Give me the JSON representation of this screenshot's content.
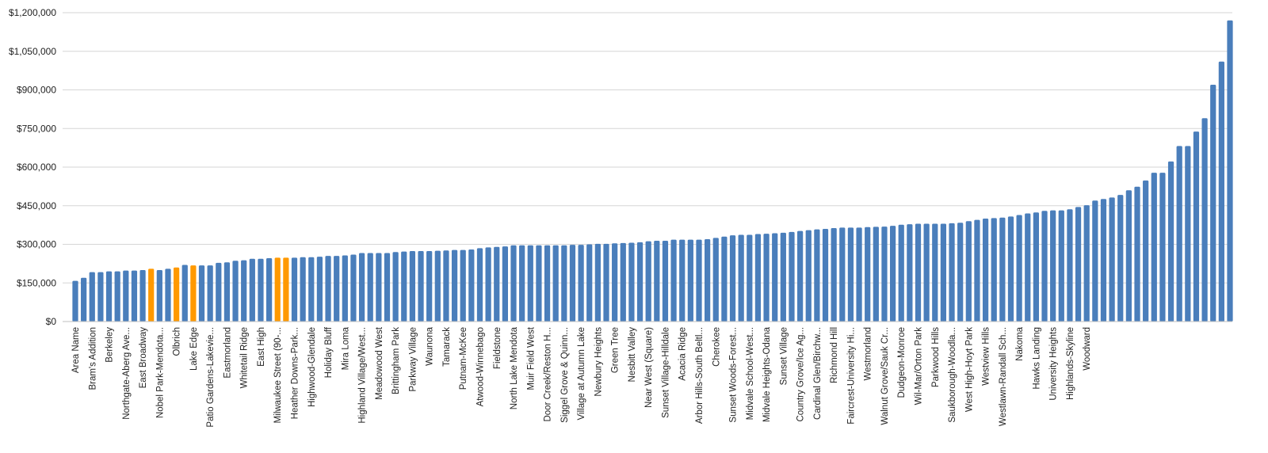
{
  "chart_data": {
    "type": "bar",
    "title": "",
    "xlabel": "",
    "ylabel": "",
    "ylim": [
      0,
      1200000
    ],
    "y_ticks": [
      "$0",
      "$150,000",
      "$300,000",
      "$450,000",
      "$600,000",
      "$750,000",
      "$900,000",
      "$1,050,000",
      "$1,200,000"
    ],
    "grid": true,
    "colors": {
      "default": "#4a7ebb",
      "highlight": "#ff9900"
    },
    "x_tick_labels": [
      "Area Name",
      "Bram's Addition",
      "Berkeley",
      "Northgate-Aberg Ave...",
      "East Broadway",
      "Nobel Park-Mendota...",
      "Olbrich",
      "Lake Edge",
      "Patio Gardens-Lakevie...",
      "Eastmorland",
      "Whitetail Ridge",
      "East High",
      "Milwaukee Street (90-...",
      "Heather Downs-Park...",
      "Highwood-Glendale",
      "Holiday Bluff",
      "Mira Loma",
      "Highland Village/West...",
      "Meadowood West",
      "Brittingham Park",
      "Parkway Village",
      "Waunona",
      "Tamarack",
      "Putnam-McKee",
      "Atwood-Winnebago",
      "Fieldstone",
      "North Lake Mendota",
      "Muir Field West",
      "Door Creek/Reston H...",
      "Siggel Grove & Quinn...",
      "Village at Autumn Lake",
      "Newbury Heights",
      "Green Tree",
      "Nesbitt Valley",
      "Near West (Square)",
      "Sunset Village-Hilldale",
      "Acacia Ridge",
      "Arbor Hills-South Beltl...",
      "Cherokee",
      "Sunset Woods-Forest...",
      "Midvale School-West...",
      "Midvale Heights-Odana",
      "Sunset Village",
      "Country Grove/Ice Ag...",
      "Cardinal Glen/Birchw...",
      "Richmond Hill",
      "Faircrest-University Hi...",
      "Westmorland",
      "Walnut Grove/Sauk Cr...",
      "Dudgeon-Monroe",
      "Wil-Mar/Orton Park",
      "Parkwood Hills",
      "Saukborough-Woodla...",
      "West High-Hoyt Park",
      "Westview Hills",
      "Westlawn-Randall Sch...",
      "Nakoma",
      "Hawks Landing",
      "University Heights",
      "Highlands-Skyline",
      "Woodward"
    ],
    "values": [
      158000,
      170000,
      192000,
      192000,
      195000,
      195000,
      198000,
      198000,
      200000,
      205000,
      200000,
      205000,
      210000,
      220000,
      218000,
      218000,
      218000,
      228000,
      230000,
      236000,
      238000,
      244000,
      244000,
      246000,
      248000,
      248000,
      248000,
      250000,
      250000,
      252000,
      255000,
      255000,
      257000,
      260000,
      266000,
      266000,
      266000,
      266000,
      270000,
      272000,
      274000,
      274000,
      274000,
      275000,
      276000,
      278000,
      278000,
      280000,
      285000,
      288000,
      290000,
      292000,
      296000,
      296000,
      296000,
      296000,
      296000,
      296000,
      296000,
      298000,
      298000,
      300000,
      302000,
      302000,
      304000,
      305000,
      306000,
      308000,
      312000,
      314000,
      314000,
      318000,
      318000,
      318000,
      318000,
      320000,
      325000,
      330000,
      335000,
      337000,
      337000,
      340000,
      341000,
      343000,
      345000,
      348000,
      352000,
      355000,
      358000,
      360000,
      363000,
      365000,
      365000,
      365000,
      367000,
      368000,
      369000,
      372000,
      376000,
      378000,
      380000,
      380000,
      380000,
      380000,
      382000,
      384000,
      390000,
      395000,
      400000,
      402000,
      404000,
      408000,
      414000,
      420000,
      424000,
      430000,
      432000,
      432000,
      436000,
      445000,
      452000,
      470000,
      476000,
      482000,
      492000,
      510000,
      524000,
      548000,
      578000,
      578000,
      622000,
      682000,
      682000,
      738000,
      790000,
      920000,
      1010000,
      1170000
    ],
    "highlight_indices": [
      9,
      12,
      14,
      24,
      25
    ]
  }
}
